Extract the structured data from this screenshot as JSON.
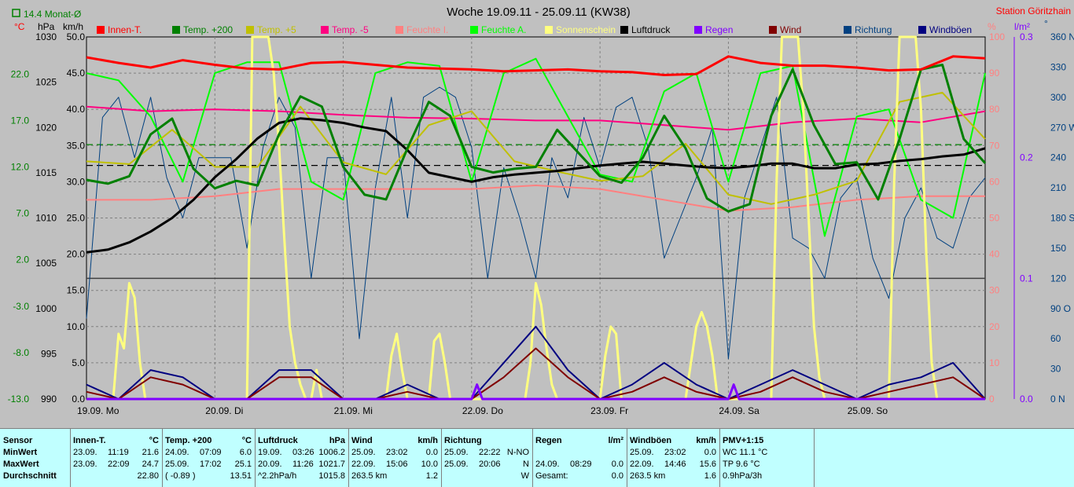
{
  "chart_data": {
    "type": "line",
    "title": "Woche 19.09.11 - 25.09.11 (KW38)",
    "station": "Station Göritzhain",
    "monthly_avg_label": "14.4 Monat-Ø",
    "x_days": [
      "19.09. Mo",
      "20.09. Di",
      "21.09. Mi",
      "22.09. Do",
      "23.09. Fr",
      "24.09. Sa",
      "25.09. So"
    ],
    "xlim": [
      0,
      168
    ],
    "axes": {
      "temp_c": {
        "unit": "°C",
        "ticks": [
          "22.0",
          "17.0",
          "12.0",
          "7.0",
          "2.0",
          "-3.0",
          "-8.0",
          "-13.0"
        ],
        "range": [
          -13,
          26
        ]
      },
      "pressure_hpa": {
        "unit": "hPa",
        "ticks": [
          "1030",
          "1025",
          "1020",
          "1015",
          "1010",
          "1005",
          "1000",
          "995",
          "990"
        ],
        "range": [
          990,
          1030
        ]
      },
      "wind_kmh": {
        "unit": "km/h",
        "ticks": [
          "50.0",
          "45.0",
          "40.0",
          "35.0",
          "30.0",
          "25.0",
          "20.0",
          "15.0",
          "10.0",
          "5.0",
          "0.0"
        ],
        "range": [
          0,
          50
        ]
      },
      "humidity_pct": {
        "unit": "%",
        "ticks": [
          "100",
          "90",
          "80",
          "70",
          "60",
          "50",
          "40",
          "30",
          "20",
          "10",
          "0"
        ],
        "range": [
          0,
          100
        ]
      },
      "rain_lm2": {
        "unit": "l/m²",
        "ticks": [
          "0.3",
          "0.2",
          "0.1",
          "0.0"
        ],
        "range": [
          0,
          0.3
        ]
      },
      "direction_deg": {
        "unit": "°",
        "ticks": [
          "360 N",
          "330",
          "300",
          "270 W",
          "240",
          "210",
          "180 S",
          "150",
          "120",
          "90 O",
          "60",
          "30",
          "0 N"
        ],
        "range": [
          0,
          360
        ]
      }
    },
    "reference_lines": {
      "monthly_avg_temp": 14.4,
      "pressure_avg": 1015.8
    },
    "colors": {
      "Innen-T.": "#ff0000",
      "Temp. +200": "#008000",
      "Temp. +5": "#c0c000",
      "Temp. -5": "#ff0080",
      "Feuchte I.": "#ff8080",
      "Feuchte A.": "#00ff00",
      "Sonnenschein": "#ffff80",
      "Luftdruck": "#000000",
      "Regen": "#8000ff",
      "Wind": "#800000",
      "Richtung": "#004080",
      "Windböen": "#000080"
    },
    "legend": [
      "Innen-T.",
      "Temp. +200",
      "Temp. +5",
      "Temp. -5",
      "Feuchte I.",
      "Feuchte A.",
      "Sonnenschein",
      "Luftdruck",
      "Regen",
      "Wind",
      "Richtung",
      "Windböen"
    ],
    "series": [
      {
        "name": "Innen-T.",
        "axis": "temp_c",
        "x": [
          0,
          6,
          12,
          18,
          24,
          30,
          36,
          42,
          48,
          54,
          60,
          66,
          72,
          78,
          84,
          90,
          96,
          102,
          108,
          114,
          120,
          126,
          132,
          138,
          144,
          150,
          156,
          162,
          168
        ],
        "values": [
          23.8,
          23.2,
          22.7,
          23.5,
          23.0,
          22.6,
          22.5,
          23.2,
          23.3,
          23.0,
          22.7,
          22.6,
          22.5,
          22.3,
          22.4,
          22.5,
          22.3,
          22.2,
          21.9,
          22.0,
          23.9,
          23.2,
          22.9,
          22.9,
          22.7,
          22.4,
          22.5,
          23.9,
          23.7
        ]
      },
      {
        "name": "Temp. +200",
        "axis": "temp_c",
        "x": [
          0,
          4,
          8,
          12,
          16,
          20,
          24,
          28,
          32,
          36,
          40,
          44,
          48,
          52,
          56,
          60,
          64,
          68,
          72,
          76,
          80,
          84,
          88,
          92,
          96,
          100,
          104,
          108,
          112,
          116,
          120,
          124,
          128,
          132,
          136,
          140,
          144,
          148,
          152,
          156,
          160,
          164,
          168
        ],
        "values": [
          10.6,
          10.2,
          11.0,
          15.5,
          17.2,
          11.8,
          9.7,
          10.5,
          10.0,
          15.5,
          19.6,
          18.5,
          12.0,
          9.0,
          8.5,
          14.0,
          19.0,
          17.5,
          12.0,
          11.4,
          11.8,
          12.0,
          16.0,
          13.5,
          11.0,
          10.3,
          13.0,
          17.5,
          14.0,
          8.6,
          7.2,
          8.0,
          17.5,
          22.5,
          16.5,
          12.3,
          12.5,
          8.5,
          15.0,
          22.5,
          23.0,
          15.0,
          12.4
        ]
      },
      {
        "name": "Temp. +5",
        "axis": "temp_c",
        "x": [
          0,
          8,
          16,
          24,
          32,
          40,
          48,
          56,
          64,
          72,
          80,
          88,
          96,
          104,
          112,
          120,
          128,
          136,
          144,
          152,
          160,
          168
        ],
        "values": [
          12.6,
          12.3,
          16.0,
          12.0,
          12.0,
          18.5,
          12.5,
          11.2,
          16.5,
          18.0,
          12.6,
          11.5,
          10.5,
          11.0,
          14.5,
          9.0,
          8.0,
          9.0,
          10.5,
          19.0,
          20.0,
          15.0
        ]
      },
      {
        "name": "Temp. -5",
        "axis": "temp_c",
        "x": [
          0,
          12,
          24,
          36,
          48,
          60,
          72,
          84,
          96,
          108,
          120,
          132,
          144,
          156,
          168
        ],
        "values": [
          18.5,
          18.0,
          18.2,
          18.0,
          17.6,
          17.3,
          17.2,
          17.0,
          17.0,
          16.5,
          16.0,
          16.8,
          17.2,
          16.8,
          18.0
        ]
      },
      {
        "name": "Feuchte I.",
        "axis": "humidity_pct",
        "x": [
          0,
          12,
          24,
          36,
          48,
          60,
          72,
          84,
          96,
          108,
          120,
          132,
          144,
          156,
          168
        ],
        "values": [
          55,
          55,
          56,
          58,
          58,
          58,
          58,
          59,
          58,
          55,
          52,
          53,
          55,
          56,
          56
        ]
      },
      {
        "name": "Feuchte A.",
        "axis": "humidity_pct",
        "x": [
          0,
          6,
          12,
          18,
          24,
          30,
          36,
          42,
          48,
          54,
          60,
          66,
          72,
          78,
          84,
          90,
          96,
          102,
          108,
          114,
          120,
          126,
          132,
          138,
          144,
          150,
          156,
          162,
          168
        ],
        "values": [
          90,
          88,
          78,
          60,
          90,
          93,
          93,
          60,
          55,
          90,
          93,
          92,
          60,
          90,
          94,
          78,
          62,
          60,
          85,
          90,
          60,
          90,
          92,
          45,
          78,
          80,
          55,
          50,
          90
        ]
      },
      {
        "name": "Sonnenschein",
        "axis": "wind_kmh",
        "x": [
          0,
          5,
          6,
          7,
          8,
          9,
          10,
          11,
          12,
          30,
          31,
          32,
          33,
          34,
          35,
          36,
          37,
          38,
          39,
          40,
          41,
          42,
          43,
          44,
          45,
          46,
          47,
          56,
          57,
          58,
          59,
          60,
          64,
          65,
          66,
          67,
          68,
          69,
          70,
          82,
          83,
          84,
          85,
          86,
          87,
          88,
          89,
          90,
          91,
          96,
          97,
          98,
          99,
          100,
          112,
          113,
          114,
          115,
          116,
          117,
          118,
          119,
          120,
          121,
          122,
          128,
          129,
          130,
          131,
          132,
          133,
          134,
          135,
          136,
          137,
          138,
          150,
          151,
          152,
          153,
          154,
          155,
          156,
          157,
          158,
          159
        ],
        "values": [
          0,
          0,
          9,
          7,
          16,
          14,
          5,
          0,
          0,
          0,
          50,
          50,
          50,
          50,
          45,
          35,
          22,
          10,
          5,
          2,
          0,
          0,
          4,
          0,
          0,
          0,
          0,
          0,
          6,
          9,
          4,
          0,
          0,
          8,
          9,
          5,
          0,
          0,
          0,
          0,
          5,
          16,
          13,
          7,
          2,
          0,
          0,
          0,
          0,
          0,
          6,
          10,
          9,
          0,
          0,
          5,
          10,
          12,
          10,
          6,
          0,
          0,
          0,
          0,
          0,
          0,
          30,
          50,
          50,
          50,
          50,
          40,
          25,
          10,
          3,
          0,
          0,
          30,
          50,
          50,
          50,
          50,
          40,
          20,
          5,
          0
        ]
      },
      {
        "name": "Luftdruck",
        "axis": "pressure_hpa",
        "x": [
          0,
          4,
          8,
          12,
          16,
          20,
          24,
          28,
          32,
          36,
          40,
          44,
          48,
          52,
          56,
          60,
          64,
          68,
          72,
          76,
          80,
          84,
          88,
          92,
          96,
          100,
          104,
          108,
          112,
          116,
          120,
          124,
          128,
          132,
          136,
          140,
          144,
          148,
          152,
          156,
          160,
          164,
          168
        ],
        "values": [
          1006.2,
          1006.5,
          1007.3,
          1008.5,
          1010.0,
          1012.0,
          1014.5,
          1016.5,
          1018.8,
          1020.5,
          1021.0,
          1020.8,
          1020.5,
          1020.0,
          1019.6,
          1017.5,
          1015.0,
          1014.5,
          1014.0,
          1014.5,
          1014.8,
          1015.0,
          1015.2,
          1015.5,
          1015.8,
          1016.0,
          1016.2,
          1016.0,
          1015.8,
          1015.6,
          1015.5,
          1015.7,
          1016.0,
          1016.0,
          1015.5,
          1015.5,
          1015.9,
          1016.0,
          1016.3,
          1016.5,
          1016.8,
          1017.0,
          1017.7
        ]
      },
      {
        "name": "Regen",
        "axis": "rain_lm2",
        "x": [
          0,
          72,
          73,
          74,
          120,
          121,
          122,
          168
        ],
        "values": [
          0,
          0,
          0.012,
          0,
          0,
          0.012,
          0,
          0
        ]
      },
      {
        "name": "Wind",
        "axis": "wind_kmh",
        "x": [
          0,
          6,
          12,
          18,
          24,
          30,
          36,
          42,
          48,
          54,
          60,
          66,
          72,
          78,
          84,
          90,
          96,
          102,
          108,
          114,
          120,
          126,
          132,
          138,
          144,
          150,
          156,
          162,
          168
        ],
        "values": [
          1,
          0,
          3,
          2,
          0,
          0,
          3,
          3,
          0,
          0,
          1,
          0,
          0,
          3,
          7,
          3,
          0,
          1,
          3,
          1,
          0,
          1,
          3,
          1,
          0,
          1,
          2,
          3,
          0
        ]
      },
      {
        "name": "Richtung",
        "axis": "direction_deg",
        "x": [
          0,
          3,
          6,
          9,
          12,
          15,
          18,
          21,
          24,
          27,
          30,
          33,
          36,
          39,
          42,
          45,
          48,
          51,
          54,
          57,
          60,
          63,
          66,
          69,
          72,
          75,
          78,
          81,
          84,
          87,
          90,
          93,
          96,
          99,
          102,
          105,
          108,
          111,
          114,
          117,
          120,
          123,
          126,
          129,
          132,
          135,
          138,
          141,
          144,
          147,
          150,
          153,
          156,
          159,
          162,
          165,
          168
        ],
        "values": [
          80,
          280,
          300,
          240,
          300,
          220,
          180,
          240,
          240,
          240,
          150,
          250,
          300,
          270,
          120,
          240,
          240,
          60,
          210,
          300,
          180,
          300,
          310,
          300,
          250,
          120,
          230,
          180,
          120,
          240,
          200,
          280,
          230,
          290,
          300,
          250,
          140,
          180,
          220,
          270,
          40,
          200,
          250,
          300,
          160,
          150,
          120,
          200,
          220,
          140,
          100,
          180,
          210,
          160,
          150,
          200,
          220
        ]
      },
      {
        "name": "Windböen",
        "axis": "wind_kmh",
        "x": [
          0,
          6,
          12,
          18,
          24,
          30,
          36,
          42,
          48,
          54,
          60,
          66,
          72,
          78,
          84,
          90,
          96,
          102,
          108,
          114,
          120,
          126,
          132,
          138,
          144,
          150,
          156,
          162,
          168
        ],
        "values": [
          2,
          0,
          4,
          3,
          0,
          0,
          4,
          4,
          0,
          0,
          2,
          0,
          0,
          5,
          10,
          4,
          0,
          2,
          5,
          2,
          0,
          2,
          4,
          2,
          0,
          2,
          3,
          5,
          0
        ]
      }
    ]
  },
  "table": {
    "row_labels": {
      "header": "Sensor",
      "min": "MinWert",
      "max": "MaxWert",
      "avg": "Durchschnitt"
    },
    "columns": [
      {
        "title": "Innen-T.",
        "unit": "°C",
        "min": {
          "date": "23.09.",
          "time": "11:19",
          "value": "21.6"
        },
        "max": {
          "date": "23.09.",
          "time": "22:09",
          "value": "24.7"
        },
        "avg": {
          "left": "",
          "value": "22.80"
        }
      },
      {
        "title": "Temp. +200",
        "unit": "°C",
        "min": {
          "date": "24.09.",
          "time": "07:09",
          "value": "6.0"
        },
        "max": {
          "date": "25.09.",
          "time": "17:02",
          "value": "25.1"
        },
        "avg": {
          "left": "( -0.89 )",
          "value": "13.51"
        }
      },
      {
        "title": "Luftdruck",
        "unit": "hPa",
        "min": {
          "date": "19.09.",
          "time": "03:26",
          "value": "1006.2"
        },
        "max": {
          "date": "20.09.",
          "time": "11:26",
          "value": "1021.7"
        },
        "avg": {
          "left": "^2.2hPa/h",
          "value": "1015.8"
        }
      },
      {
        "title": "Wind",
        "unit": "km/h",
        "min": {
          "date": "25.09.",
          "time": "23:02",
          "value": "0.0"
        },
        "max": {
          "date": "22.09.",
          "time": "15:06",
          "value": "10.0"
        },
        "avg": {
          "left": "263.5 km",
          "value": "1.2"
        }
      },
      {
        "title": "Richtung",
        "unit": "",
        "min": {
          "date": "25.09.",
          "time": "22:22",
          "value": "N-NO"
        },
        "max": {
          "date": "25.09.",
          "time": "20:06",
          "value": "N"
        },
        "avg": {
          "left": "",
          "value": "W"
        }
      },
      {
        "title": "Regen",
        "unit": "l/m²",
        "min": {
          "date": "",
          "time": "",
          "value": ""
        },
        "max": {
          "date": "24.09.",
          "time": "08:29",
          "value": "0.0"
        },
        "avg": {
          "left": "Gesamt:",
          "value": "0.0"
        }
      },
      {
        "title": "Windböen",
        "unit": "km/h",
        "min": {
          "date": "25.09.",
          "time": "23:02",
          "value": "0.0"
        },
        "max": {
          "date": "22.09.",
          "time": "14:46",
          "value": "15.6"
        },
        "avg": {
          "left": "263.5 km",
          "value": "1.6"
        }
      },
      {
        "title": "PMV+1:15",
        "unit": "",
        "min": {
          "date": "WC 11.1 °C",
          "time": "",
          "value": ""
        },
        "max": {
          "date": "TP 9.6 °C",
          "time": "",
          "value": ""
        },
        "avg": {
          "left": "0.9hPa/3h",
          "value": ""
        }
      }
    ]
  }
}
